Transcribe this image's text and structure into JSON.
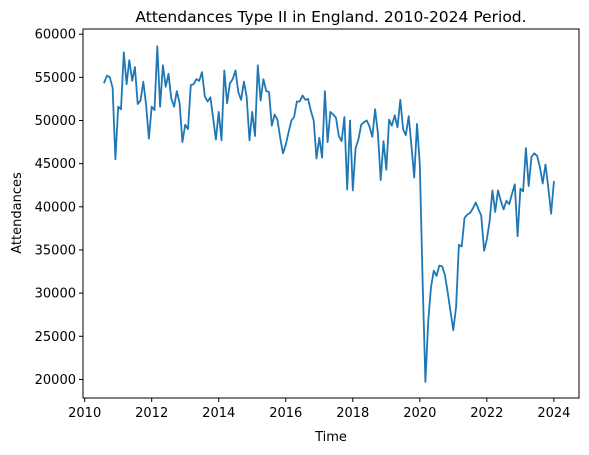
{
  "chart_data": {
    "type": "line",
    "title": "Attendances Type II in England. 2010-2024 Period.",
    "xlabel": "Time",
    "ylabel": "Attendances",
    "xlim": [
      2009.95,
      2024.75
    ],
    "ylim": [
      17850,
      60600
    ],
    "x_ticks": [
      2010,
      2012,
      2014,
      2016,
      2018,
      2020,
      2022,
      2024
    ],
    "y_ticks": [
      20000,
      25000,
      30000,
      35000,
      40000,
      45000,
      50000,
      55000,
      60000
    ],
    "grid": false,
    "legend": "none",
    "series": [
      {
        "color": "#1f77b4",
        "x": [
          2010.583,
          2010.667,
          2010.75,
          2010.833,
          2010.917,
          2011.0,
          2011.083,
          2011.167,
          2011.25,
          2011.333,
          2011.417,
          2011.5,
          2011.583,
          2011.667,
          2011.75,
          2011.833,
          2011.917,
          2012.0,
          2012.083,
          2012.167,
          2012.25,
          2012.333,
          2012.417,
          2012.5,
          2012.583,
          2012.667,
          2012.75,
          2012.833,
          2012.917,
          2013.0,
          2013.083,
          2013.167,
          2013.25,
          2013.333,
          2013.417,
          2013.5,
          2013.583,
          2013.667,
          2013.75,
          2013.833,
          2013.917,
          2014.0,
          2014.083,
          2014.167,
          2014.25,
          2014.333,
          2014.417,
          2014.5,
          2014.583,
          2014.667,
          2014.75,
          2014.833,
          2014.917,
          2015.0,
          2015.083,
          2015.167,
          2015.25,
          2015.333,
          2015.417,
          2015.5,
          2015.583,
          2015.667,
          2015.75,
          2015.833,
          2015.917,
          2016.0,
          2016.083,
          2016.167,
          2016.25,
          2016.333,
          2016.417,
          2016.5,
          2016.583,
          2016.667,
          2016.75,
          2016.833,
          2016.917,
          2017.0,
          2017.083,
          2017.167,
          2017.25,
          2017.333,
          2017.417,
          2017.5,
          2017.583,
          2017.667,
          2017.75,
          2017.833,
          2017.917,
          2018.0,
          2018.083,
          2018.167,
          2018.25,
          2018.333,
          2018.417,
          2018.5,
          2018.583,
          2018.667,
          2018.75,
          2018.833,
          2018.917,
          2019.0,
          2019.083,
          2019.167,
          2019.25,
          2019.333,
          2019.417,
          2019.5,
          2019.583,
          2019.667,
          2019.75,
          2019.833,
          2019.917,
          2020.0,
          2020.083,
          2020.167,
          2020.25,
          2020.333,
          2020.417,
          2020.5,
          2020.583,
          2020.667,
          2020.75,
          2020.833,
          2020.917,
          2021.0,
          2021.083,
          2021.167,
          2021.25,
          2021.333,
          2021.417,
          2021.5,
          2021.583,
          2021.667,
          2021.75,
          2021.833,
          2021.917,
          2022.0,
          2022.083,
          2022.167,
          2022.25,
          2022.333,
          2022.417,
          2022.5,
          2022.583,
          2022.667,
          2022.75,
          2022.833,
          2022.917,
          2023.0,
          2023.083,
          2023.167,
          2023.25,
          2023.333,
          2023.417,
          2023.5,
          2023.583,
          2023.667,
          2023.75,
          2023.833,
          2023.917,
          2024.0
        ],
        "y": [
          54400,
          55200,
          55000,
          53800,
          45500,
          51600,
          51300,
          57900,
          54200,
          57000,
          54600,
          56200,
          51900,
          52300,
          54500,
          51800,
          47900,
          51600,
          51200,
          58600,
          51600,
          56400,
          53900,
          55400,
          52600,
          51600,
          53400,
          52000,
          47500,
          49500,
          49000,
          54100,
          54200,
          54800,
          54600,
          55600,
          52800,
          52200,
          52700,
          50300,
          47800,
          51000,
          47700,
          55800,
          52000,
          54300,
          54800,
          55800,
          53300,
          52400,
          54500,
          52800,
          47700,
          51000,
          48200,
          56400,
          52300,
          54800,
          53400,
          53300,
          49400,
          50700,
          50100,
          48000,
          46200,
          47200,
          48600,
          50000,
          50400,
          52200,
          52200,
          52900,
          52400,
          52500,
          51100,
          50000,
          45600,
          48000,
          45700,
          53400,
          47500,
          51000,
          50700,
          50300,
          48200,
          47600,
          50400,
          42000,
          50000,
          41900,
          46800,
          47800,
          49500,
          49800,
          50000,
          49300,
          48100,
          51300,
          48500,
          43100,
          47600,
          44300,
          50100,
          49400,
          50600,
          49200,
          52400,
          49000,
          48300,
          50500,
          47100,
          43400,
          49600,
          44900,
          31500,
          19700,
          26700,
          30700,
          32600,
          32000,
          33200,
          33100,
          32100,
          30100,
          27900,
          25700,
          28400,
          35600,
          35400,
          38700,
          39100,
          39300,
          39800,
          40500,
          39700,
          39000,
          34900,
          36200,
          38300,
          41900,
          39400,
          41900,
          40700,
          39700,
          40700,
          40300,
          41500,
          42600,
          36600,
          42100,
          41800,
          46800,
          42400,
          45800,
          46200,
          45900,
          44600,
          42700,
          44900,
          42200,
          39200,
          42900
        ]
      }
    ]
  }
}
